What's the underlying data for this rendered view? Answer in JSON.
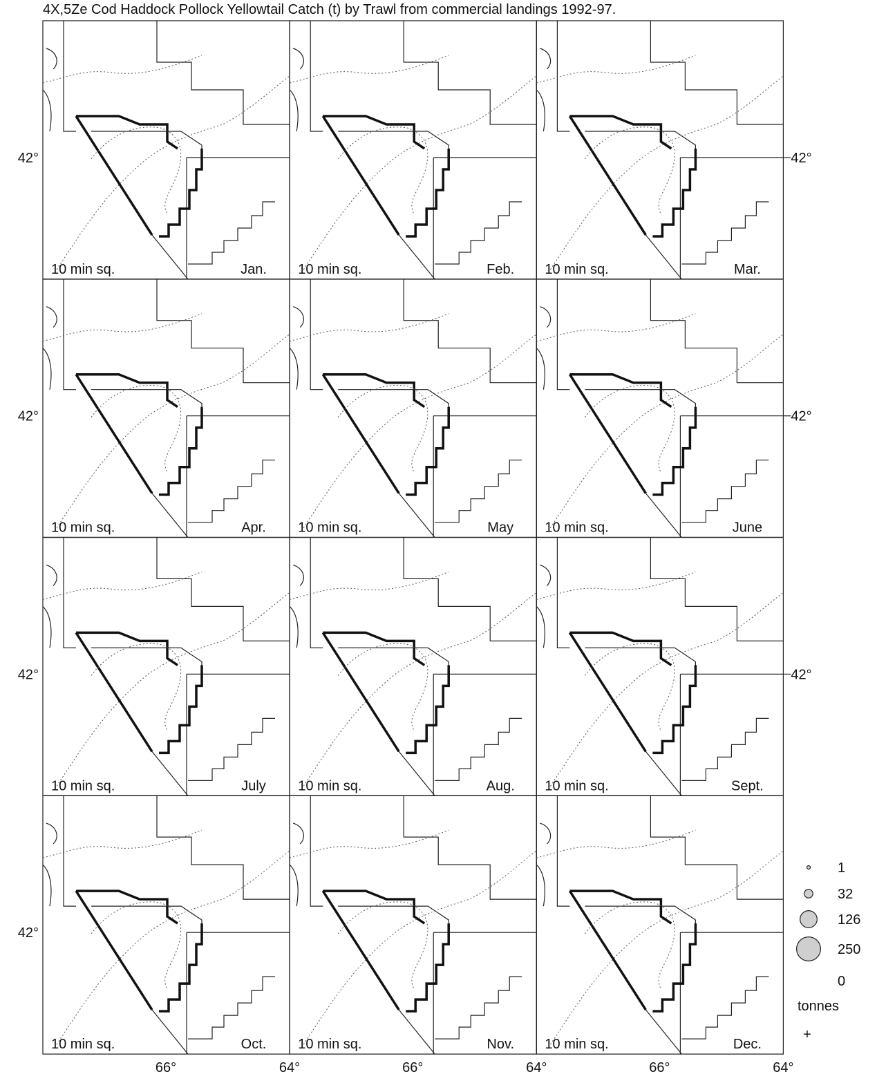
{
  "title": "4X,5Ze Cod Haddock Pollock Yellowtail Catch (t) by Trawl from commercial landings 1992-97.",
  "panels": [
    {
      "grid_label": "10 min sq.",
      "month": "Jan."
    },
    {
      "grid_label": "10 min sq.",
      "month": "Feb."
    },
    {
      "grid_label": "10 min sq.",
      "month": "Mar."
    },
    {
      "grid_label": "10 min sq.",
      "month": "Apr."
    },
    {
      "grid_label": "10 min sq.",
      "month": "May"
    },
    {
      "grid_label": "10 min sq.",
      "month": "June"
    },
    {
      "grid_label": "10 min sq.",
      "month": "July"
    },
    {
      "grid_label": "10 min sq.",
      "month": "Aug."
    },
    {
      "grid_label": "10 min sq.",
      "month": "Sept."
    },
    {
      "grid_label": "10 min sq.",
      "month": "Oct."
    },
    {
      "grid_label": "10 min sq.",
      "month": "Nov."
    },
    {
      "grid_label": "10 min sq.",
      "month": "Dec."
    }
  ],
  "lat_label": "42°",
  "lon_labels": [
    "66°",
    "64°"
  ],
  "legend": {
    "values": [
      1,
      32,
      126,
      250
    ],
    "zero_value": 0,
    "unit": "tonnes"
  }
}
